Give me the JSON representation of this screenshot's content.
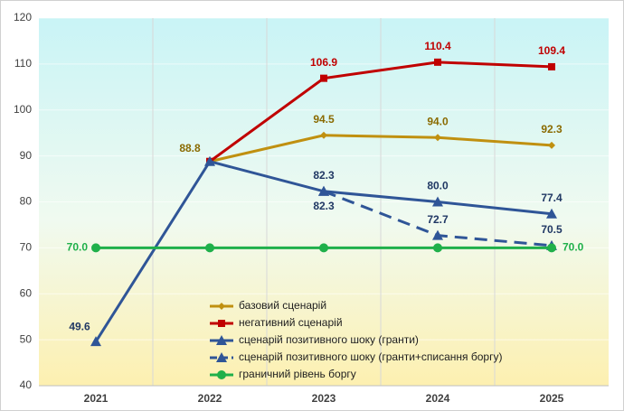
{
  "chart_data": {
    "type": "line",
    "categories": [
      "2021",
      "2022",
      "2023",
      "2024",
      "2025"
    ],
    "series": [
      {
        "name": "базовий сценарій",
        "color": "#C09010",
        "marker": "diamond",
        "dash": false,
        "values": [
          null,
          88.8,
          94.5,
          94.0,
          92.3
        ],
        "value_labels": [
          null,
          "88.8",
          "94.5",
          "94.0",
          "92.3"
        ]
      },
      {
        "name": "негативний сценарій",
        "color": "#C00000",
        "marker": "square",
        "dash": false,
        "values": [
          null,
          88.8,
          106.9,
          110.4,
          109.4
        ],
        "value_labels": [
          null,
          null,
          "106.9",
          "110.4",
          "109.4"
        ]
      },
      {
        "name": "сценарій позитивного шоку (гранти)",
        "color": "#2F5597",
        "marker": "triangle",
        "dash": false,
        "values": [
          49.6,
          88.8,
          82.3,
          80.0,
          77.4
        ],
        "value_labels": [
          "49.6",
          null,
          "82.3",
          "80.0",
          "77.4"
        ]
      },
      {
        "name": "сценарій позитивного шоку (гранти+списання боргу)",
        "color": "#2F5597",
        "marker": "triangle",
        "dash": true,
        "values": [
          null,
          null,
          82.3,
          72.7,
          70.5
        ],
        "value_labels": [
          null,
          null,
          "82.3",
          "72.7",
          "70.5"
        ]
      },
      {
        "name": "граничний рівень боргу",
        "color": "#1FB04A",
        "marker": "circle",
        "dash": false,
        "values": [
          70.0,
          70.0,
          70.0,
          70.0,
          70.0
        ],
        "value_labels": [
          "70.0",
          null,
          null,
          null,
          "70.0"
        ]
      }
    ],
    "ylim": [
      40,
      120
    ],
    "yticks": [
      40,
      50,
      60,
      70,
      80,
      90,
      100,
      110,
      120
    ],
    "grid": true
  }
}
